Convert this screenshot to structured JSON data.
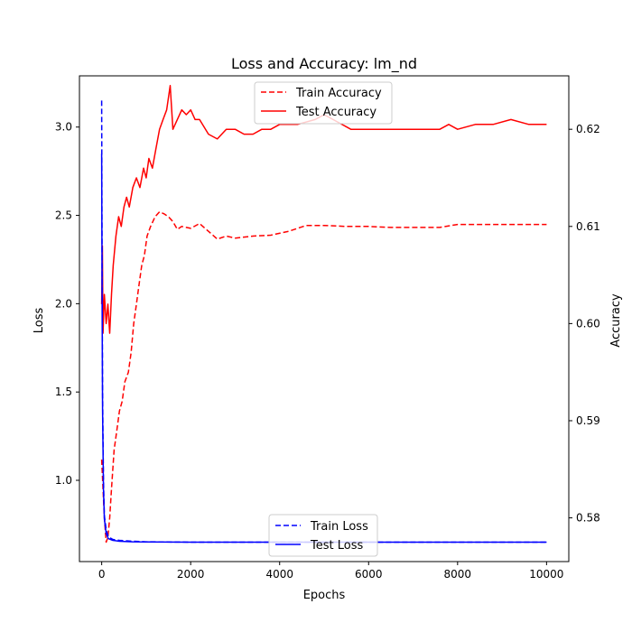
{
  "chart_data": {
    "type": "line",
    "title": "Loss and Accuracy: lm_nd",
    "xlabel": "Epochs",
    "ylabel_left": "Loss",
    "ylabel_right": "Accuracy",
    "xlim": [
      -500,
      10500
    ],
    "ylim_left": [
      0.54,
      3.29
    ],
    "ylim_right": [
      0.5755,
      0.6255
    ],
    "x_ticks": [
      0,
      2000,
      4000,
      6000,
      8000,
      10000
    ],
    "y_ticks_left": [
      1.0,
      1.5,
      2.0,
      2.5,
      3.0
    ],
    "y_ticks_right": [
      0.58,
      0.59,
      0.6,
      0.61,
      0.62
    ],
    "grid": false,
    "legends": [
      {
        "position": "top-center",
        "entries": [
          "Train Accuracy",
          "Test Accuracy"
        ]
      },
      {
        "position": "bottom-center",
        "entries": [
          "Train Loss",
          "Test Loss"
        ]
      }
    ],
    "series": [
      {
        "name": "Train Accuracy",
        "axis": "right",
        "color": "#ff0000",
        "dash": true,
        "points": [
          [
            0,
            0.586
          ],
          [
            20,
            0.584
          ],
          [
            40,
            0.582
          ],
          [
            60,
            0.58
          ],
          [
            100,
            0.5775
          ],
          [
            140,
            0.578
          ],
          [
            180,
            0.58
          ],
          [
            220,
            0.583
          ],
          [
            280,
            0.587
          ],
          [
            340,
            0.589
          ],
          [
            400,
            0.591
          ],
          [
            460,
            0.592
          ],
          [
            520,
            0.594
          ],
          [
            600,
            0.595
          ],
          [
            660,
            0.597
          ],
          [
            720,
            0.6
          ],
          [
            780,
            0.602
          ],
          [
            840,
            0.604
          ],
          [
            900,
            0.606
          ],
          [
            960,
            0.607
          ],
          [
            1020,
            0.609
          ],
          [
            1100,
            0.61
          ],
          [
            1200,
            0.611
          ],
          [
            1300,
            0.6115
          ],
          [
            1400,
            0.6113
          ],
          [
            1500,
            0.611
          ],
          [
            1600,
            0.6105
          ],
          [
            1700,
            0.6097
          ],
          [
            1800,
            0.61
          ],
          [
            2000,
            0.6098
          ],
          [
            2200,
            0.6103
          ],
          [
            2400,
            0.6095
          ],
          [
            2600,
            0.6087
          ],
          [
            2800,
            0.609
          ],
          [
            3000,
            0.6088
          ],
          [
            3400,
            0.609
          ],
          [
            3800,
            0.6091
          ],
          [
            4200,
            0.6095
          ],
          [
            4600,
            0.6101
          ],
          [
            5000,
            0.6101
          ],
          [
            5500,
            0.61
          ],
          [
            6000,
            0.61
          ],
          [
            6500,
            0.6099
          ],
          [
            7000,
            0.6099
          ],
          [
            7600,
            0.6099
          ],
          [
            8000,
            0.6102
          ],
          [
            8500,
            0.6102
          ],
          [
            9000,
            0.6102
          ],
          [
            9500,
            0.6102
          ],
          [
            10000,
            0.6102
          ]
        ]
      },
      {
        "name": "Test Accuracy",
        "axis": "right",
        "color": "#ff0000",
        "dash": false,
        "points": [
          [
            0,
            0.602
          ],
          [
            15,
            0.608
          ],
          [
            30,
            0.599
          ],
          [
            60,
            0.603
          ],
          [
            100,
            0.6
          ],
          [
            140,
            0.602
          ],
          [
            180,
            0.599
          ],
          [
            220,
            0.603
          ],
          [
            260,
            0.606
          ],
          [
            320,
            0.609
          ],
          [
            380,
            0.611
          ],
          [
            440,
            0.61
          ],
          [
            500,
            0.612
          ],
          [
            560,
            0.613
          ],
          [
            620,
            0.612
          ],
          [
            700,
            0.614
          ],
          [
            780,
            0.615
          ],
          [
            860,
            0.614
          ],
          [
            940,
            0.616
          ],
          [
            1000,
            0.615
          ],
          [
            1060,
            0.617
          ],
          [
            1140,
            0.616
          ],
          [
            1220,
            0.618
          ],
          [
            1300,
            0.62
          ],
          [
            1380,
            0.621
          ],
          [
            1460,
            0.622
          ],
          [
            1540,
            0.6245
          ],
          [
            1600,
            0.62
          ],
          [
            1700,
            0.621
          ],
          [
            1800,
            0.622
          ],
          [
            1900,
            0.6215
          ],
          [
            2000,
            0.622
          ],
          [
            2100,
            0.621
          ],
          [
            2200,
            0.621
          ],
          [
            2400,
            0.6195
          ],
          [
            2600,
            0.619
          ],
          [
            2800,
            0.62
          ],
          [
            3000,
            0.62
          ],
          [
            3200,
            0.6195
          ],
          [
            3400,
            0.6195
          ],
          [
            3600,
            0.62
          ],
          [
            3800,
            0.62
          ],
          [
            4000,
            0.6205
          ],
          [
            4400,
            0.6205
          ],
          [
            4800,
            0.621
          ],
          [
            5000,
            0.6215
          ],
          [
            5200,
            0.621
          ],
          [
            5600,
            0.62
          ],
          [
            6000,
            0.62
          ],
          [
            6400,
            0.62
          ],
          [
            7000,
            0.62
          ],
          [
            7500,
            0.62
          ],
          [
            7600,
            0.62
          ],
          [
            7800,
            0.6205
          ],
          [
            8000,
            0.62
          ],
          [
            8400,
            0.6205
          ],
          [
            8800,
            0.6205
          ],
          [
            9200,
            0.621
          ],
          [
            9600,
            0.6205
          ],
          [
            10000,
            0.6205
          ]
        ]
      },
      {
        "name": "Train Loss",
        "axis": "left",
        "color": "#0000ff",
        "dash": true,
        "points": [
          [
            0,
            3.15
          ],
          [
            10,
            2.2
          ],
          [
            20,
            1.5
          ],
          [
            40,
            1.0
          ],
          [
            60,
            0.8
          ],
          [
            100,
            0.72
          ],
          [
            150,
            0.68
          ],
          [
            250,
            0.665
          ],
          [
            400,
            0.66
          ],
          [
            700,
            0.655
          ],
          [
            1000,
            0.652
          ],
          [
            2000,
            0.65
          ],
          [
            4000,
            0.65
          ],
          [
            6000,
            0.65
          ],
          [
            8000,
            0.65
          ],
          [
            10000,
            0.65
          ]
        ]
      },
      {
        "name": "Test Loss",
        "axis": "left",
        "color": "#0000ff",
        "dash": false,
        "points": [
          [
            0,
            2.85
          ],
          [
            10,
            2.0
          ],
          [
            20,
            1.4
          ],
          [
            40,
            0.95
          ],
          [
            60,
            0.78
          ],
          [
            100,
            0.7
          ],
          [
            150,
            0.67
          ],
          [
            250,
            0.66
          ],
          [
            400,
            0.655
          ],
          [
            700,
            0.652
          ],
          [
            1000,
            0.651
          ],
          [
            2000,
            0.65
          ],
          [
            4000,
            0.65
          ],
          [
            6000,
            0.65
          ],
          [
            8000,
            0.65
          ],
          [
            10000,
            0.65
          ]
        ]
      }
    ]
  }
}
